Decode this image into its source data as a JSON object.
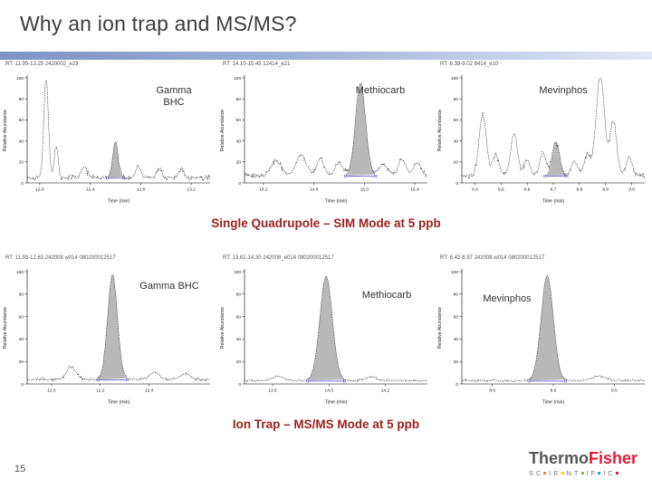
{
  "slide": {
    "title": "Why an ion trap and MS/MS?",
    "page_number": "15"
  },
  "captions": {
    "sim": "Single Quadrupole – SIM Mode at 5 ppb",
    "msms": "Ion Trap – MS/MS Mode at 5 ppb"
  },
  "logo": {
    "thermo": "Thermo",
    "fisher": "Fisher",
    "scientific": "SCIENTIFIC",
    "dot_after": [
      1,
      3,
      5,
      7,
      9
    ],
    "dot_colors": [
      "#f58025",
      "#ffd200",
      "#7ac143",
      "#00aeef",
      "#e31937"
    ]
  },
  "colors": {
    "accent_bar_start": "#7f92c5",
    "accent_bar_end": "#e2e8f5",
    "caption": "#9c1f1f",
    "peak_fill": "#b9b9b9",
    "marker_blue": "#4040c0"
  },
  "chart_data": [
    {
      "type": "line",
      "header": "RT: 11.95-13.25  2420002_e23",
      "label": "Gamma BHC",
      "xlabel": "Time (min)",
      "ylabel": "Relative Abundance",
      "xlim": [
        11.9,
        13.35
      ],
      "ylim": [
        0,
        100
      ],
      "xticks": [
        "12.0",
        "12.4",
        "12.8",
        "13.2"
      ],
      "yticks": [
        0,
        20,
        40,
        60,
        80,
        100
      ],
      "baseline": 5,
      "noise": 4,
      "peaks": [
        {
          "rt": 12.05,
          "height": 95,
          "width": 0.018
        },
        {
          "rt": 12.13,
          "height": 30,
          "width": 0.015
        },
        {
          "rt": 12.35,
          "height": 10,
          "width": 0.025
        },
        {
          "rt": 12.6,
          "height": 34,
          "width": 0.022,
          "filled": true
        },
        {
          "rt": 12.78,
          "height": 11,
          "width": 0.02
        },
        {
          "rt": 12.95,
          "height": 9,
          "width": 0.02
        },
        {
          "rt": 13.12,
          "height": 8,
          "width": 0.02
        }
      ]
    },
    {
      "type": "line",
      "header": "RT: 14.10-15.45  12414_e21",
      "label": "Methiocarb",
      "xlabel": "Time (min)",
      "ylabel": "Relative Abundance",
      "xlim": [
        14.05,
        15.5
      ],
      "ylim": [
        0,
        100
      ],
      "xticks": [
        "14.2",
        "14.6",
        "15.0",
        "15.4"
      ],
      "yticks": [
        0,
        20,
        40,
        60,
        80,
        100
      ],
      "baseline": 7,
      "noise": 3.5,
      "peaks": [
        {
          "rt": 14.3,
          "height": 14,
          "width": 0.04
        },
        {
          "rt": 14.5,
          "height": 20,
          "width": 0.04
        },
        {
          "rt": 14.65,
          "height": 16,
          "width": 0.03
        },
        {
          "rt": 14.8,
          "height": 12,
          "width": 0.03
        },
        {
          "rt": 14.97,
          "height": 88,
          "width": 0.04,
          "filled": true
        },
        {
          "rt": 15.15,
          "height": 10,
          "width": 0.04
        },
        {
          "rt": 15.3,
          "height": 16,
          "width": 0.03
        },
        {
          "rt": 15.42,
          "height": 12,
          "width": 0.03
        }
      ]
    },
    {
      "type": "line",
      "header": "RT: 8.38-9.02  8414_e10",
      "label": "Mevinphos",
      "xlabel": "Time (min)",
      "ylabel": "Relative Abundance",
      "xlim": [
        8.35,
        9.05
      ],
      "ylim": [
        0,
        100
      ],
      "xticks": [
        "8.4",
        "8.5",
        "8.6",
        "8.7",
        "8.8",
        "8.9",
        "9.0"
      ],
      "yticks": [
        0,
        20,
        40,
        60,
        80,
        100
      ],
      "baseline": 7,
      "noise": 4,
      "peaks": [
        {
          "rt": 8.43,
          "height": 58,
          "width": 0.014
        },
        {
          "rt": 8.48,
          "height": 20,
          "width": 0.012
        },
        {
          "rt": 8.55,
          "height": 40,
          "width": 0.013
        },
        {
          "rt": 8.6,
          "height": 15,
          "width": 0.012
        },
        {
          "rt": 8.66,
          "height": 22,
          "width": 0.012
        },
        {
          "rt": 8.71,
          "height": 32,
          "width": 0.014,
          "filled": true
        },
        {
          "rt": 8.78,
          "height": 14,
          "width": 0.012
        },
        {
          "rt": 8.83,
          "height": 20,
          "width": 0.012
        },
        {
          "rt": 8.88,
          "height": 95,
          "width": 0.016
        },
        {
          "rt": 8.93,
          "height": 50,
          "width": 0.013
        },
        {
          "rt": 8.99,
          "height": 18,
          "width": 0.012
        }
      ]
    },
    {
      "type": "line",
      "header": "RT: 11.93-12.63  242008  w014  080200012517",
      "label": "Gamma BHC",
      "xlabel": "Time (min)",
      "ylabel": "Relative Abundance",
      "xlim": [
        11.9,
        12.65
      ],
      "ylim": [
        0,
        100
      ],
      "xticks": [
        "12.0",
        "12.2",
        "12.4"
      ],
      "yticks": [
        0,
        20,
        40,
        60,
        80,
        100
      ],
      "baseline": 4,
      "noise": 2,
      "peaks": [
        {
          "rt": 12.08,
          "height": 11,
          "width": 0.02
        },
        {
          "rt": 12.25,
          "height": 93,
          "width": 0.02,
          "filled": true
        },
        {
          "rt": 12.42,
          "height": 6,
          "width": 0.02
        },
        {
          "rt": 12.55,
          "height": 5,
          "width": 0.02
        }
      ]
    },
    {
      "type": "line",
      "header": "RT: 13.61-14.30  242008_e014  080200012517",
      "label": "Methiocarb",
      "xlabel": "Time (min)",
      "ylabel": "Relative Abundance",
      "xlim": [
        13.7,
        14.35
      ],
      "ylim": [
        0,
        100
      ],
      "xticks": [
        "13.8",
        "14.0",
        "14.2"
      ],
      "yticks": [
        0,
        20,
        40,
        60,
        80,
        100
      ],
      "baseline": 3,
      "noise": 1.4,
      "peaks": [
        {
          "rt": 13.82,
          "height": 4,
          "width": 0.02
        },
        {
          "rt": 13.99,
          "height": 93,
          "width": 0.022,
          "filled": true
        },
        {
          "rt": 14.15,
          "height": 3,
          "width": 0.02
        }
      ]
    },
    {
      "type": "line",
      "header": "RT: 8.42-8.97  242008  w014  080200012517",
      "label": "Mevinphos",
      "xlabel": "Time (min)",
      "ylabel": "Relative Abundance",
      "xlim": [
        8.5,
        9.1
      ],
      "ylim": [
        0,
        100
      ],
      "xticks": [
        "8.6",
        "8.8",
        "9.0"
      ],
      "yticks": [
        0,
        20,
        40,
        60,
        80,
        100
      ],
      "baseline": 3,
      "noise": 1.4,
      "peaks": [
        {
          "rt": 8.78,
          "height": 93,
          "width": 0.02,
          "filled": true
        },
        {
          "rt": 8.95,
          "height": 4,
          "width": 0.02
        }
      ]
    }
  ]
}
